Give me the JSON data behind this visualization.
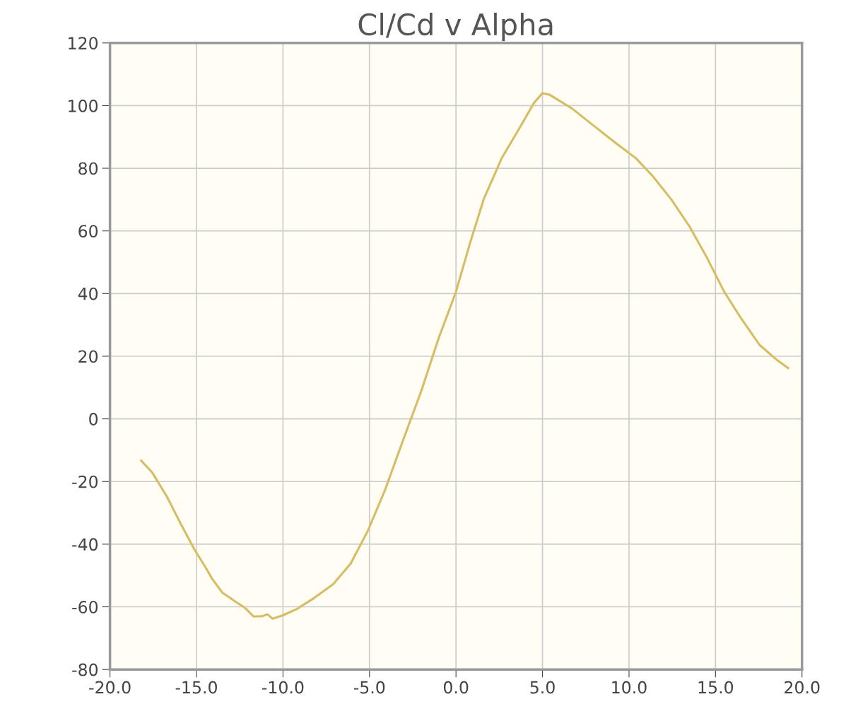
{
  "chart_data": {
    "type": "line",
    "title": "Cl/Cd v Alpha",
    "x": [
      -18.2,
      -17.55,
      -16.7,
      -15.9,
      -15.1,
      -14.5,
      -14.1,
      -13.5,
      -12.65,
      -12.2,
      -11.7,
      -11.2,
      -10.9,
      -10.6,
      -10.0,
      -9.2,
      -8.2,
      -7.1,
      -6.1,
      -5.1,
      -4.1,
      -3.1,
      -2.0,
      -1.0,
      0.0,
      0.8,
      1.6,
      2.65,
      3.7,
      4.5,
      5.0,
      5.4,
      6.7,
      8.0,
      9.2,
      10.4,
      11.4,
      12.45,
      13.5,
      14.5,
      15.5,
      16.5,
      17.55,
      18.55,
      19.2
    ],
    "series": [
      {
        "color": "#d6bc62",
        "values": [
          -13.3,
          -17.2,
          -24.9,
          -33.6,
          -41.9,
          -47.2,
          -51,
          -55.5,
          -58.7,
          -60.3,
          -63.1,
          -63,
          -62.4,
          -63.8,
          -62.7,
          -60.7,
          -57.2,
          -52.8,
          -46.3,
          -35.8,
          -22.7,
          -7.4,
          9,
          25.8,
          40.6,
          55.9,
          70.1,
          83.3,
          93.1,
          100.8,
          104,
          103.5,
          99.1,
          93.4,
          88.2,
          83.2,
          77.3,
          70,
          61.4,
          51.5,
          40.6,
          31.9,
          23.6,
          18.8,
          16.2
        ]
      }
    ],
    "xlim": [
      -20,
      20
    ],
    "xticks": [
      {
        "value": -20,
        "label": "-20.0"
      },
      {
        "value": -15,
        "label": "-15.0"
      },
      {
        "value": -10,
        "label": "-10.0"
      },
      {
        "value": -5,
        "label": "-5.0"
      },
      {
        "value": 0,
        "label": "0.0"
      },
      {
        "value": 5,
        "label": "5.0"
      },
      {
        "value": 10,
        "label": "10.0"
      },
      {
        "value": 15,
        "label": "15.0"
      },
      {
        "value": 20,
        "label": "20.0"
      }
    ],
    "ylim": [
      -80,
      120
    ],
    "yticks": [
      -80,
      -60,
      -40,
      -20,
      0,
      20,
      40,
      60,
      80,
      100,
      120
    ],
    "grid": true,
    "legend": false,
    "marker": "none",
    "line_style": "solid"
  }
}
